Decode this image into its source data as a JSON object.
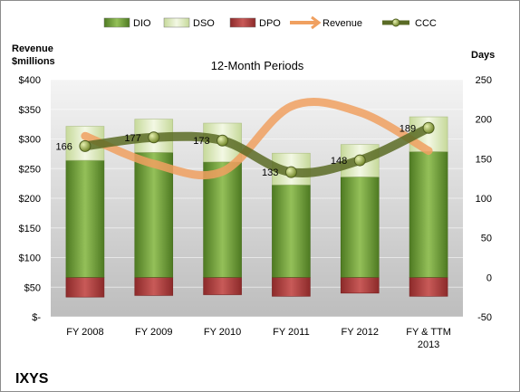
{
  "chart_data": {
    "type": "bar",
    "title": "12-Month Periods",
    "company": "IXYS",
    "y_left_label_line1": "Revenue",
    "y_left_label_line2": "$millions",
    "y_right_label": "Days",
    "left_axis": {
      "min": 0,
      "max": 400,
      "step": 50,
      "ticks": [
        "$-",
        "$50",
        "$100",
        "$150",
        "$200",
        "$250",
        "$300",
        "$350",
        "$400"
      ]
    },
    "right_axis": {
      "min": -50,
      "max": 250,
      "step": 50,
      "ticks": [
        "-50",
        "0",
        "50",
        "100",
        "150",
        "200",
        "250"
      ]
    },
    "categories": [
      "FY 2008",
      "FY 2009",
      "FY 2010",
      "FY 2011",
      "FY 2012",
      "FY & TTM|2013"
    ],
    "legend": [
      {
        "name": "DIO",
        "kind": "box",
        "color": "#74a037"
      },
      {
        "name": "DSO",
        "kind": "box",
        "color": "#e2eec2"
      },
      {
        "name": "DPO",
        "kind": "box",
        "color": "#b4403f"
      },
      {
        "name": "Revenue",
        "kind": "line",
        "color": "#f0a060"
      },
      {
        "name": "CCC",
        "kind": "marker-line",
        "color": "#5a6b25"
      }
    ],
    "series": [
      {
        "name": "DIO",
        "axis": "right",
        "values": [
          148,
          158,
          146,
          117,
          127,
          159
        ]
      },
      {
        "name": "DSO",
        "axis": "right",
        "values": [
          43,
          42,
          49,
          40,
          41,
          44
        ]
      },
      {
        "name": "DPO",
        "axis": "right",
        "values": [
          -25,
          -23,
          -22,
          -24,
          -20,
          -24
        ]
      },
      {
        "name": "Revenue",
        "axis": "left",
        "values": [
          305,
          258,
          245,
          355,
          345,
          280
        ]
      },
      {
        "name": "CCC",
        "axis": "right",
        "values": [
          166,
          177,
          173,
          133,
          148,
          189
        ]
      }
    ],
    "ccc_labels": [
      "166",
      "177",
      "173",
      "133",
      "148",
      "189"
    ],
    "colors": {
      "dio_dark": "#4e7a22",
      "dio_light": "#94c059",
      "dso_dark": "#c6d99a",
      "dso_light": "#f3f8e4",
      "dpo_dark": "#8c2a2a",
      "dpo_light": "#c85a58",
      "revenue": "#f0a060",
      "ccc_line": "#5a6b25",
      "ccc_marker": "#7a8f2a"
    }
  }
}
